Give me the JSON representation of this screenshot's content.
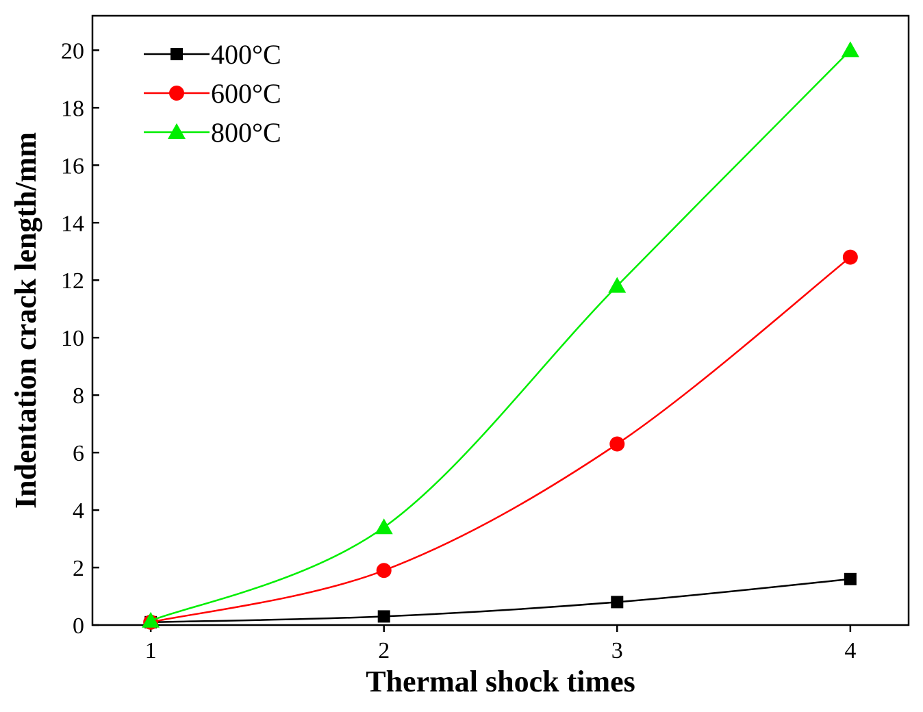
{
  "chart_data": {
    "type": "line",
    "title": "",
    "xlabel": "Thermal shock times",
    "ylabel": "Indentation crack length/mm",
    "x": [
      1,
      2,
      3,
      4
    ],
    "x_ticks": [
      "1",
      "2",
      "3",
      "4"
    ],
    "y_ticks": [
      "0",
      "2",
      "4",
      "6",
      "8",
      "10",
      "12",
      "14",
      "16",
      "18",
      "20"
    ],
    "xlim": [
      0.75,
      4.25
    ],
    "ylim": [
      0,
      21.2
    ],
    "grid": false,
    "legend_position": "top-left",
    "series": [
      {
        "name": "400°C",
        "marker": "square",
        "color": "#000000",
        "values": [
          0.1,
          0.3,
          0.8,
          1.6
        ]
      },
      {
        "name": "600°C",
        "marker": "circle",
        "color": "#ff0000",
        "values": [
          0.1,
          1.9,
          6.3,
          12.8
        ]
      },
      {
        "name": "800°C",
        "marker": "triangle",
        "color": "#00ee00",
        "values": [
          0.15,
          3.4,
          11.8,
          20.0
        ]
      }
    ]
  }
}
